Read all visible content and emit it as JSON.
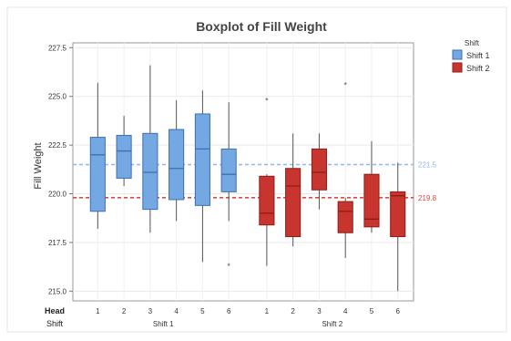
{
  "chart_data": {
    "type": "boxplot",
    "title": "Boxplot of Fill Weight",
    "ylabel": "Fill Weight",
    "ylim": [
      214.5,
      227.75
    ],
    "yticks": [
      "227.5",
      "225.0",
      "222.5",
      "220.0",
      "217.5",
      "215.0"
    ],
    "ytick_values": [
      227.5,
      225.0,
      222.5,
      220.0,
      217.5,
      215.0
    ],
    "x_row_labels": {
      "head": "Head",
      "shift": "Shift"
    },
    "groups": [
      {
        "name": "Shift 1",
        "color": "#74a8e3",
        "edge": "#3e6fae",
        "mean_line": 221.5,
        "mean_label": "221.5",
        "mean_color": "#8db8f0"
      },
      {
        "name": "Shift 2",
        "color": "#c8352f",
        "edge": "#8b1d19",
        "mean_line": 219.8,
        "mean_label": "219.8",
        "mean_color": "#e0493f"
      }
    ],
    "legend": {
      "title": "Shift",
      "position": "top-right",
      "entries": [
        "Shift 1",
        "Shift 2"
      ]
    },
    "grid": true,
    "boxes": [
      {
        "group": 0,
        "head": "1",
        "min": 218.2,
        "q1": 219.1,
        "median": 222.0,
        "q3": 222.9,
        "max": 225.7,
        "outliers": []
      },
      {
        "group": 0,
        "head": "2",
        "min": 220.4,
        "q1": 220.8,
        "median": 222.2,
        "q3": 223.0,
        "max": 224.0,
        "outliers": []
      },
      {
        "group": 0,
        "head": "3",
        "min": 218.0,
        "q1": 219.2,
        "median": 221.1,
        "q3": 223.1,
        "max": 226.6,
        "outliers": []
      },
      {
        "group": 0,
        "head": "4",
        "min": 218.6,
        "q1": 219.7,
        "median": 221.3,
        "q3": 223.3,
        "max": 224.8,
        "outliers": []
      },
      {
        "group": 0,
        "head": "5",
        "min": 216.5,
        "q1": 219.4,
        "median": 222.3,
        "q3": 224.1,
        "max": 225.3,
        "outliers": []
      },
      {
        "group": 0,
        "head": "6",
        "min": 218.6,
        "q1": 220.1,
        "median": 221.0,
        "q3": 222.3,
        "max": 224.7,
        "outliers": [
          216.3
        ]
      },
      {
        "group": 1,
        "head": "1",
        "min": 216.3,
        "q1": 218.4,
        "median": 219.0,
        "q3": 220.9,
        "max": 221.0,
        "outliers": [
          224.8
        ]
      },
      {
        "group": 1,
        "head": "2",
        "min": 217.3,
        "q1": 217.8,
        "median": 220.4,
        "q3": 221.3,
        "max": 223.1,
        "outliers": []
      },
      {
        "group": 1,
        "head": "3",
        "min": 219.2,
        "q1": 220.2,
        "median": 221.1,
        "q3": 222.3,
        "max": 223.1,
        "outliers": []
      },
      {
        "group": 1,
        "head": "4",
        "min": 216.7,
        "q1": 218.0,
        "median": 219.1,
        "q3": 219.6,
        "max": 219.8,
        "outliers": [
          225.6
        ]
      },
      {
        "group": 1,
        "head": "5",
        "min": 218.0,
        "q1": 218.3,
        "median": 218.7,
        "q3": 221.0,
        "max": 222.7,
        "outliers": []
      },
      {
        "group": 1,
        "head": "6",
        "min": 215.0,
        "q1": 217.8,
        "median": 219.9,
        "q3": 220.1,
        "max": 221.6,
        "outliers": []
      }
    ]
  }
}
